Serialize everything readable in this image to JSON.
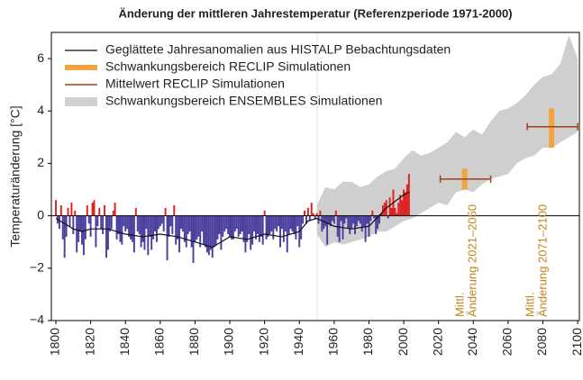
{
  "chart_data": {
    "type": "combo",
    "title": "Änderung der mittleren Jahrestemperatur (Referenzperiode 1971-2000)",
    "ylabel": "Temperaturänderung [°C]",
    "xlim": [
      1797.4,
      2101
    ],
    "ylim": [
      -4,
      7
    ],
    "xticks": [
      1800,
      1820,
      1840,
      1860,
      1880,
      1900,
      1920,
      1940,
      1960,
      1980,
      2000,
      2020,
      2040,
      2060,
      2080,
      2100
    ],
    "yticks": [
      {
        "value": -4,
        "label": "−4"
      },
      {
        "value": -2,
        "label": "−2"
      },
      0,
      2,
      4,
      6
    ],
    "bars": {
      "positive_color": "#e0201e",
      "negative_color": "#4b3f9e",
      "x": [
        1800,
        1801,
        1802,
        1803,
        1804,
        1805,
        1806,
        1807,
        1808,
        1809,
        1810,
        1811,
        1812,
        1813,
        1814,
        1815,
        1816,
        1817,
        1818,
        1819,
        1820,
        1821,
        1822,
        1823,
        1824,
        1825,
        1826,
        1827,
        1828,
        1829,
        1830,
        1831,
        1832,
        1833,
        1834,
        1835,
        1836,
        1837,
        1838,
        1839,
        1840,
        1841,
        1842,
        1843,
        1844,
        1845,
        1846,
        1847,
        1848,
        1849,
        1850,
        1851,
        1852,
        1853,
        1854,
        1855,
        1856,
        1857,
        1858,
        1859,
        1860,
        1861,
        1862,
        1863,
        1864,
        1865,
        1866,
        1867,
        1868,
        1869,
        1870,
        1871,
        1872,
        1873,
        1874,
        1875,
        1876,
        1877,
        1878,
        1879,
        1880,
        1881,
        1882,
        1883,
        1884,
        1885,
        1886,
        1887,
        1888,
        1889,
        1890,
        1891,
        1892,
        1893,
        1894,
        1895,
        1896,
        1897,
        1898,
        1899,
        1900,
        1901,
        1902,
        1903,
        1904,
        1905,
        1906,
        1907,
        1908,
        1909,
        1910,
        1911,
        1912,
        1913,
        1914,
        1915,
        1916,
        1917,
        1918,
        1919,
        1920,
        1921,
        1922,
        1923,
        1924,
        1925,
        1926,
        1927,
        1928,
        1929,
        1930,
        1931,
        1932,
        1933,
        1934,
        1935,
        1936,
        1937,
        1938,
        1939,
        1940,
        1941,
        1942,
        1943,
        1944,
        1945,
        1946,
        1947,
        1948,
        1949,
        1950,
        1951,
        1952,
        1953,
        1954,
        1955,
        1956,
        1957,
        1958,
        1959,
        1960,
        1961,
        1962,
        1963,
        1964,
        1965,
        1966,
        1967,
        1968,
        1969,
        1970,
        1971,
        1972,
        1973,
        1974,
        1975,
        1976,
        1977,
        1978,
        1979,
        1980,
        1981,
        1982,
        1983,
        1984,
        1985,
        1986,
        1987,
        1988,
        1989,
        1990,
        1991,
        1992,
        1993,
        1994,
        1995,
        1996,
        1997,
        1998,
        1999,
        2000,
        2001,
        2002,
        2003
      ],
      "values": [
        0.6,
        -0.3,
        -0.5,
        0.4,
        -0.9,
        -1.6,
        -0.8,
        0.3,
        -0.4,
        0.5,
        -0.7,
        0.2,
        -1.4,
        -1.0,
        -0.6,
        -1.1,
        -1.5,
        -0.9,
        0.4,
        -0.3,
        -0.8,
        0.5,
        0.6,
        -1.2,
        -0.4,
        0.3,
        -0.5,
        -0.7,
        0.4,
        -1.6,
        -1.3,
        -0.6,
        -0.5,
        0.2,
        0.5,
        -0.9,
        -0.7,
        -1.0,
        -1.1,
        -0.4,
        -0.6,
        -0.5,
        -0.8,
        -0.9,
        -1.0,
        -1.4,
        0.3,
        -0.6,
        -0.7,
        -1.2,
        -1.0,
        -1.3,
        -0.5,
        -1.5,
        -0.8,
        -1.3,
        -0.9,
        -0.6,
        -1.0,
        -0.5,
        -0.4,
        -0.3,
        -0.6,
        0.3,
        -1.7,
        -0.8,
        -0.4,
        -0.7,
        0.4,
        -1.1,
        -0.9,
        -1.4,
        -0.5,
        -0.6,
        -1.0,
        -1.2,
        -0.7,
        -0.6,
        -1.2,
        -1.8,
        -1.0,
        -0.9,
        -0.8,
        -1.2,
        -0.6,
        -1.1,
        -1.2,
        -1.4,
        -1.5,
        -1.3,
        -1.6,
        -1.2,
        -1.1,
        -0.9,
        -0.7,
        -1.3,
        -0.8,
        -0.6,
        -0.5,
        -0.7,
        -0.8,
        -0.9,
        -0.9,
        -0.6,
        -0.5,
        -0.8,
        -0.7,
        -0.6,
        -1.0,
        -1.4,
        -1.0,
        -0.7,
        -1.3,
        -1.1,
        -0.6,
        -0.9,
        -0.7,
        -1.0,
        -0.8,
        -1.1,
        0.2,
        -0.9,
        -0.8,
        -0.7,
        -0.6,
        -0.9,
        -0.5,
        -0.6,
        -0.4,
        -1.2,
        -0.5,
        -1.0,
        -0.6,
        -1.4,
        -0.7,
        -0.5,
        -0.6,
        -0.7,
        -0.9,
        -0.4,
        -1.2,
        -0.9,
        -0.3,
        0.2,
        -0.3,
        0.3,
        -0.2,
        0.5,
        0.1,
        -0.1,
        0.1,
        -0.3,
        0.2,
        -0.6,
        -0.5,
        -0.4,
        -1.1,
        -0.3,
        -0.4,
        -0.2,
        -0.3,
        0.2,
        -0.8,
        -1.0,
        -0.2,
        -0.9,
        -0.3,
        -0.1,
        -0.5,
        -0.7,
        -0.5,
        -0.3,
        -0.7,
        -0.4,
        -0.2,
        -0.3,
        -0.6,
        -0.4,
        -1.0,
        -0.3,
        -0.8,
        -0.2,
        0.2,
        -0.1,
        -0.7,
        -0.5,
        -0.3,
        0.1,
        0.4,
        0.5,
        0.6,
        -0.1,
        0.7,
        0.3,
        1.0,
        0.3,
        0.1,
        0.5,
        0.8,
        0.6,
        1.0,
        0.9,
        1.2,
        1.6
      ]
    },
    "ensembles": {
      "name": "Schwankungsbereich ENSEMBLES Simulationen",
      "color": "#cfcfcf",
      "x": [
        1950,
        1955,
        1960,
        1965,
        1970,
        1975,
        1980,
        1985,
        1990,
        1995,
        2000,
        2005,
        2010,
        2015,
        2020,
        2025,
        2030,
        2035,
        2040,
        2045,
        2050,
        2055,
        2060,
        2065,
        2070,
        2075,
        2080,
        2085,
        2090,
        2095,
        2100
      ],
      "upper": [
        0.4,
        1.1,
        1.0,
        1.3,
        1.3,
        1.1,
        1.2,
        1.5,
        1.7,
        1.8,
        2.2,
        2.5,
        2.3,
        2.4,
        2.6,
        2.8,
        3.2,
        3.0,
        3.3,
        3.1,
        3.6,
        4.0,
        4.1,
        4.3,
        4.6,
        5.0,
        5.3,
        5.4,
        5.8,
        6.9,
        6.0
      ],
      "lower": [
        -0.7,
        -1.2,
        -1.0,
        -1.1,
        -1.0,
        -0.9,
        -0.8,
        -0.6,
        -0.6,
        -0.4,
        -0.2,
        -0.1,
        0.1,
        0.3,
        0.5,
        0.4,
        0.9,
        1.0,
        0.9,
        1.2,
        1.4,
        1.5,
        1.6,
        2.0,
        2.2,
        2.3,
        2.6,
        2.6,
        2.8,
        3.0,
        3.2
      ]
    },
    "smoothed": {
      "name": "Geglättete Jahresanomalien aus HISTALP Bebachtungsdaten",
      "color": "#111111",
      "x": [
        1800,
        1810,
        1815,
        1820,
        1830,
        1840,
        1850,
        1860,
        1870,
        1880,
        1890,
        1895,
        1900,
        1910,
        1920,
        1930,
        1940,
        1945,
        1950,
        1960,
        1970,
        1980,
        1990,
        2000,
        2003
      ],
      "values": [
        -0.1,
        -0.5,
        -0.6,
        -0.5,
        -0.5,
        -0.7,
        -0.8,
        -0.7,
        -0.8,
        -1.0,
        -1.2,
        -1.0,
        -0.8,
        -0.9,
        -0.7,
        -0.8,
        -0.6,
        -0.2,
        -0.1,
        -0.4,
        -0.5,
        -0.4,
        0.3,
        0.8,
        0.9
      ]
    },
    "reclip_range": {
      "name": "Schwankungsbereich RECLIP Simulationen",
      "color": "#f4a340",
      "x": [
        2035,
        2085
      ],
      "low": [
        1.0,
        2.6
      ],
      "high": [
        1.8,
        4.1
      ]
    },
    "reclip_mean": {
      "name": "Mittelwert RECLIP Simulationen",
      "color": "#a0401a",
      "values": [
        1.4,
        3.4
      ],
      "x_from": [
        2021,
        2071
      ],
      "x_to": [
        2050,
        2100
      ]
    },
    "annotation_color": "#c0861e",
    "annotations": [
      [
        "Mittl.",
        "Änderung 2021–2050"
      ],
      [
        "Mittl.",
        "Änderung 2071–2100"
      ]
    ]
  }
}
